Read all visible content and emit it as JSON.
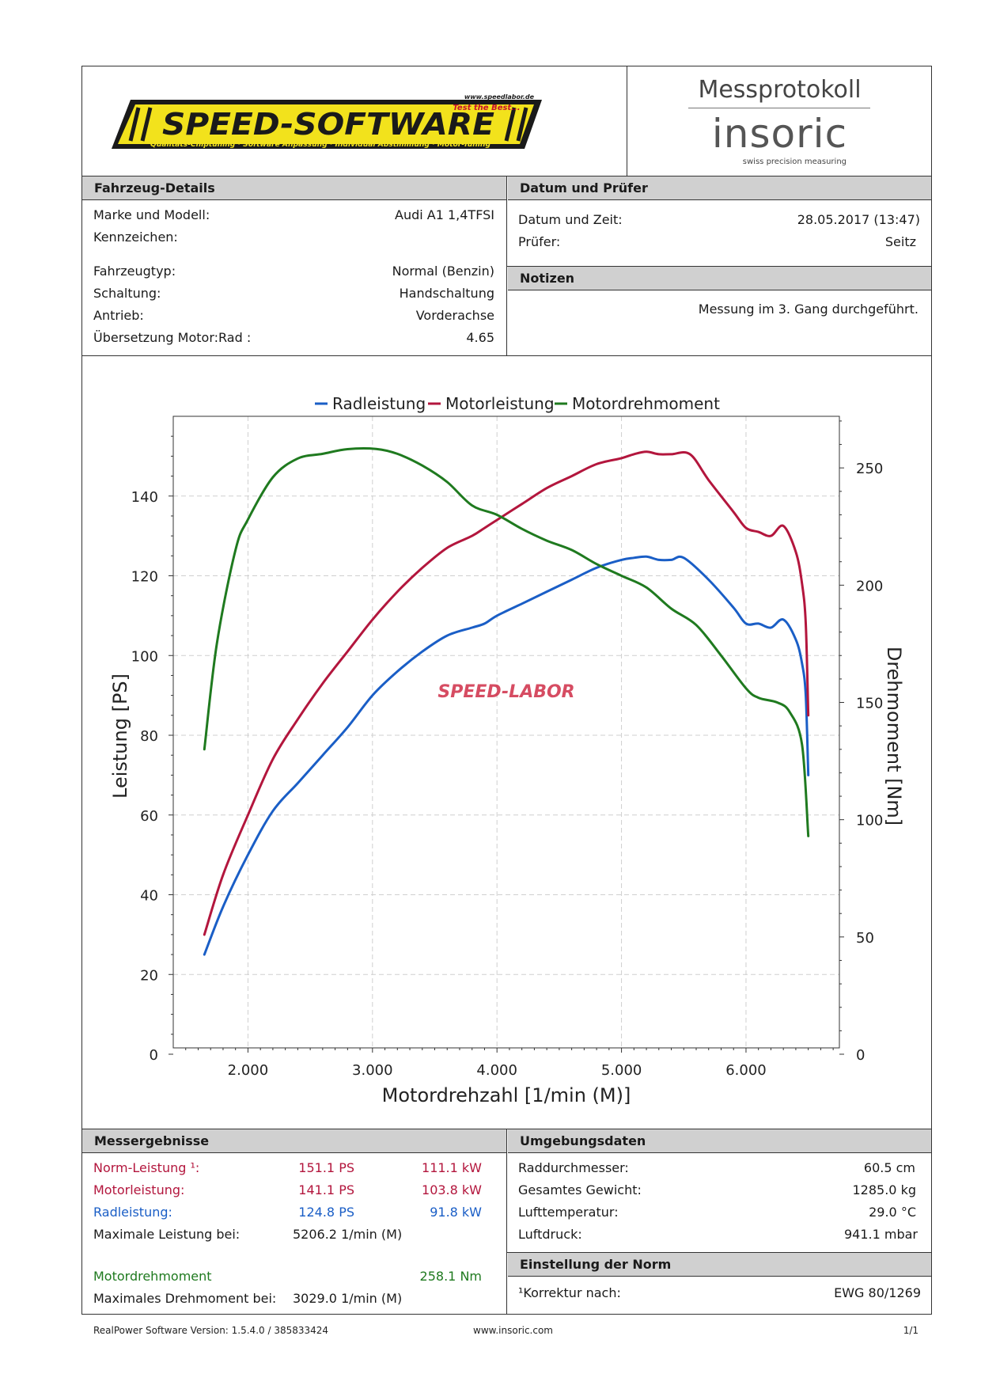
{
  "header": {
    "logo_brand": "SPEED-SOFTWARE",
    "logo_top": "www.speedlabor.de",
    "logo_tagline": "Test the Best...",
    "logo_sub": "Qualitäts-Chiptuning · Software Anpassung · Individual Abstimmung · Motor-Tuning",
    "doc_title": "Messprotokoll",
    "brand": "insoric",
    "brand_sub": "swiss precision measuring"
  },
  "vehicle": {
    "title": "Fahrzeug-Details",
    "rows": [
      {
        "label": "Marke und Modell:",
        "value": "Audi A1 1,4TFSI"
      },
      {
        "label": "Kennzeichen:",
        "value": ""
      },
      {
        "label": "Fahrzeugtyp:",
        "value": "Normal (Benzin)"
      },
      {
        "label": "Schaltung:",
        "value": "Handschaltung"
      },
      {
        "label": "Antrieb:",
        "value": "Vorderachse"
      },
      {
        "label": "Übersetzung Motor:Rad :",
        "value": "4.65"
      }
    ]
  },
  "date": {
    "title": "Datum und Prüfer",
    "rows": [
      {
        "label": "Datum und Zeit:",
        "value": "28.05.2017 (13:47)"
      },
      {
        "label": "Prüfer:",
        "value": "Seitz"
      }
    ]
  },
  "notes": {
    "title": "Notizen",
    "text": "Messung im 3. Gang durchgeführt."
  },
  "chart_data": {
    "type": "line",
    "title": "",
    "xlabel": "Motordrehzahl [1/min (M)]",
    "ylabel": "Leistung [PS]",
    "y2label": "Drehmoment [Nm]",
    "watermark": "SPEED-LABOR",
    "xlim": [
      1400,
      6750
    ],
    "ylim": [
      0,
      160
    ],
    "y2lim": [
      0,
      272
    ],
    "x_ticks": [
      2000,
      3000,
      4000,
      5000,
      6000
    ],
    "x_tick_labels": [
      "2.000",
      "3.000",
      "4.000",
      "5.000",
      "6.000"
    ],
    "y_ticks": [
      0,
      20,
      40,
      60,
      80,
      100,
      120,
      140
    ],
    "y2_ticks": [
      0,
      50,
      100,
      150,
      200,
      250
    ],
    "legend_position": "top-center",
    "grid": true,
    "series": [
      {
        "name": "Radleistung",
        "axis": "left",
        "color": "#1a5ec6",
        "points": [
          [
            1650,
            25
          ],
          [
            1800,
            37
          ],
          [
            2000,
            50
          ],
          [
            2200,
            61
          ],
          [
            2400,
            68
          ],
          [
            2600,
            75
          ],
          [
            2800,
            82
          ],
          [
            3000,
            90
          ],
          [
            3200,
            96
          ],
          [
            3400,
            101
          ],
          [
            3600,
            105
          ],
          [
            3800,
            107
          ],
          [
            3900,
            108
          ],
          [
            4000,
            110
          ],
          [
            4200,
            113
          ],
          [
            4400,
            116
          ],
          [
            4600,
            119
          ],
          [
            4800,
            122
          ],
          [
            5000,
            124
          ],
          [
            5100,
            124.5
          ],
          [
            5200,
            124.8
          ],
          [
            5300,
            124
          ],
          [
            5400,
            124
          ],
          [
            5500,
            124.5
          ],
          [
            5700,
            119
          ],
          [
            5900,
            112
          ],
          [
            6000,
            108
          ],
          [
            6100,
            108
          ],
          [
            6200,
            107
          ],
          [
            6300,
            109
          ],
          [
            6400,
            104
          ],
          [
            6450,
            98
          ],
          [
            6480,
            90
          ],
          [
            6500,
            70
          ]
        ]
      },
      {
        "name": "Motorleistung",
        "axis": "left",
        "color": "#b3163d",
        "points": [
          [
            1650,
            30
          ],
          [
            1800,
            45
          ],
          [
            2000,
            60
          ],
          [
            2200,
            74
          ],
          [
            2400,
            84
          ],
          [
            2600,
            93
          ],
          [
            2800,
            101
          ],
          [
            3000,
            109
          ],
          [
            3200,
            116
          ],
          [
            3400,
            122
          ],
          [
            3600,
            127
          ],
          [
            3800,
            130
          ],
          [
            3900,
            132
          ],
          [
            4000,
            134
          ],
          [
            4200,
            138
          ],
          [
            4400,
            142
          ],
          [
            4600,
            145
          ],
          [
            4800,
            148
          ],
          [
            5000,
            149.5
          ],
          [
            5100,
            150.5
          ],
          [
            5200,
            151.1
          ],
          [
            5300,
            150.5
          ],
          [
            5400,
            150.5
          ],
          [
            5550,
            150.5
          ],
          [
            5700,
            144
          ],
          [
            5900,
            136
          ],
          [
            6000,
            132
          ],
          [
            6100,
            131
          ],
          [
            6200,
            130
          ],
          [
            6300,
            132.5
          ],
          [
            6400,
            126
          ],
          [
            6450,
            118
          ],
          [
            6480,
            108
          ],
          [
            6500,
            85
          ]
        ]
      },
      {
        "name": "Motordrehmoment",
        "axis": "right",
        "color": "#1f7a1f",
        "points": [
          [
            1650,
            130
          ],
          [
            1750,
            175
          ],
          [
            1900,
            215
          ],
          [
            2000,
            228
          ],
          [
            2200,
            246
          ],
          [
            2400,
            254
          ],
          [
            2600,
            256
          ],
          [
            2800,
            258
          ],
          [
            3029,
            258.1
          ],
          [
            3200,
            256
          ],
          [
            3400,
            251
          ],
          [
            3600,
            244
          ],
          [
            3800,
            234
          ],
          [
            4000,
            230
          ],
          [
            4200,
            224
          ],
          [
            4400,
            219
          ],
          [
            4600,
            215
          ],
          [
            4800,
            209
          ],
          [
            5000,
            204
          ],
          [
            5200,
            199
          ],
          [
            5400,
            190
          ],
          [
            5600,
            183
          ],
          [
            5800,
            170
          ],
          [
            6000,
            156
          ],
          [
            6100,
            152
          ],
          [
            6250,
            150
          ],
          [
            6350,
            146
          ],
          [
            6450,
            132
          ],
          [
            6500,
            93
          ]
        ]
      }
    ]
  },
  "results": {
    "title": "Messergebnisse",
    "norm": {
      "label": "Norm-Leistung ¹:",
      "ps": "151.1 PS",
      "kw": "111.1 kW"
    },
    "motor": {
      "label": "Motorleistung:",
      "ps": "141.1 PS",
      "kw": "103.8 kW"
    },
    "rad": {
      "label": "Radleistung:",
      "ps": "124.8 PS",
      "kw": "91.8 kW"
    },
    "max_power": {
      "label": "Maximale Leistung bei:",
      "value": "5206.2 1/min (M)"
    },
    "torque": {
      "label": "Motordrehmoment",
      "value": "258.1 Nm"
    },
    "max_torque": {
      "label": "Maximales Drehmoment bei:",
      "value": "3029.0 1/min (M)"
    }
  },
  "environment": {
    "title": "Umgebungsdaten",
    "rows": [
      {
        "label": "Raddurchmesser:",
        "value": "60.5 cm"
      },
      {
        "label": "Gesamtes Gewicht:",
        "value": "1285.0 kg"
      },
      {
        "label": "Lufttemperatur:",
        "value": "29.0 °C"
      },
      {
        "label": "Luftdruck:",
        "value": "941.1 mbar"
      }
    ]
  },
  "norm_setting": {
    "title": "Einstellung der Norm",
    "label": "¹Korrektur nach:",
    "value": "EWG 80/1269"
  },
  "footer": {
    "version": "RealPower Software Version: 1.5.4.0 / 385833424",
    "url": "www.insoric.com",
    "page": "1/1"
  }
}
